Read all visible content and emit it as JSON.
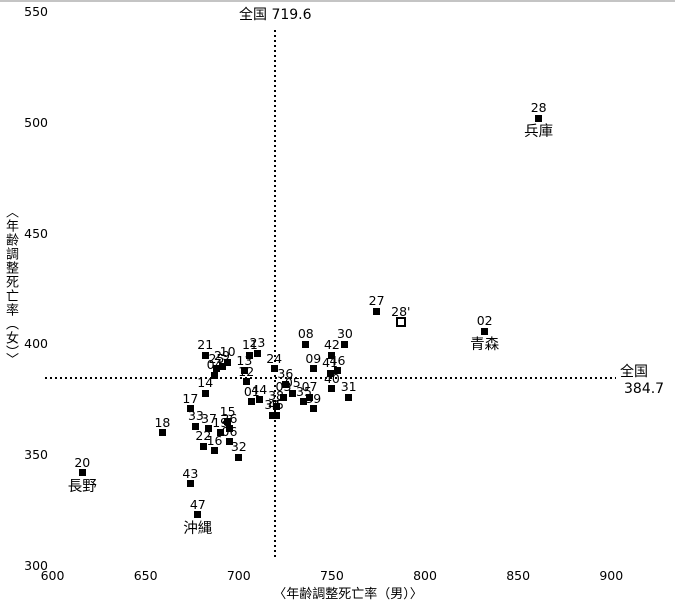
{
  "chart_data": {
    "type": "scatter",
    "title": "",
    "xlabel": "〈年齢調整死亡率（男）〉",
    "ylabel": "〈年齢調整死亡率（女）〉",
    "xlim": [
      600,
      900
    ],
    "ylim": [
      300,
      550
    ],
    "x_ticks": [
      "600",
      "650",
      "700",
      "750",
      "800",
      "850",
      "900"
    ],
    "y_ticks": [
      "550",
      "500",
      "450",
      "400",
      "350",
      "300"
    ],
    "grid": false,
    "legend": "none",
    "marker_color": "#000000",
    "reference_lines": {
      "national_male": {
        "orientation": "vertical",
        "value": 719.6,
        "label": "全国 719.6"
      },
      "national_female": {
        "orientation": "horizontal",
        "value": 384.7,
        "label_top": "全国",
        "label_bottom": "384.7"
      }
    },
    "points": [
      {
        "code": "01",
        "x": 707,
        "y": 374
      },
      {
        "code": "02",
        "x": 832,
        "y": 406,
        "name": "青森"
      },
      {
        "code": "03",
        "x": 724,
        "y": 376
      },
      {
        "code": "04",
        "x": 687,
        "y": 386
      },
      {
        "code": "05",
        "x": 729,
        "y": 378
      },
      {
        "code": "06",
        "x": 695,
        "y": 356
      },
      {
        "code": "07",
        "x": 738,
        "y": 376
      },
      {
        "code": "08",
        "x": 736,
        "y": 400
      },
      {
        "code": "09",
        "x": 740,
        "y": 389
      },
      {
        "code": "10",
        "x": 694,
        "y": 392
      },
      {
        "code": "11",
        "x": 706,
        "y": 395
      },
      {
        "code": "12",
        "x": 704,
        "y": 383
      },
      {
        "code": "13",
        "x": 703,
        "y": 388
      },
      {
        "code": "14",
        "x": 682,
        "y": 378
      },
      {
        "code": "15",
        "x": 694,
        "y": 365
      },
      {
        "code": "16",
        "x": 687,
        "y": 352
      },
      {
        "code": "17",
        "x": 674,
        "y": 371
      },
      {
        "code": "18",
        "x": 659,
        "y": 360
      },
      {
        "code": "19",
        "x": 690,
        "y": 360
      },
      {
        "code": "20",
        "x": 616,
        "y": 342,
        "name": "長野"
      },
      {
        "code": "21",
        "x": 682,
        "y": 395
      },
      {
        "code": "22",
        "x": 681,
        "y": 354
      },
      {
        "code": "23",
        "x": 710,
        "y": 396
      },
      {
        "code": "24",
        "x": 719,
        "y": 389
      },
      {
        "code": "25",
        "x": 688,
        "y": 389
      },
      {
        "code": "26",
        "x": 695,
        "y": 362
      },
      {
        "code": "27",
        "x": 774,
        "y": 415
      },
      {
        "code": "28",
        "x": 861,
        "y": 502,
        "name": "兵庫"
      },
      {
        "code": "28'",
        "x": 787,
        "y": 410,
        "marker": "open"
      },
      {
        "code": "29",
        "x": 691,
        "y": 390
      },
      {
        "code": "30",
        "x": 757,
        "y": 400
      },
      {
        "code": "31",
        "x": 759,
        "y": 376
      },
      {
        "code": "32",
        "x": 700,
        "y": 349
      },
      {
        "code": "33",
        "x": 677,
        "y": 363
      },
      {
        "code": "34",
        "x": 718,
        "y": 368
      },
      {
        "code": "35",
        "x": 735,
        "y": 374
      },
      {
        "code": "36",
        "x": 725,
        "y": 382
      },
      {
        "code": "37",
        "x": 684,
        "y": 362
      },
      {
        "code": "38",
        "x": 720,
        "y": 372
      },
      {
        "code": "39",
        "x": 740,
        "y": 371
      },
      {
        "code": "40",
        "x": 750,
        "y": 380
      },
      {
        "code": "41",
        "x": 749,
        "y": 387
      },
      {
        "code": "42",
        "x": 750,
        "y": 395
      },
      {
        "code": "43",
        "x": 674,
        "y": 337
      },
      {
        "code": "44",
        "x": 711,
        "y": 375
      },
      {
        "code": "45",
        "x": 720,
        "y": 368
      },
      {
        "code": "46",
        "x": 753,
        "y": 388
      },
      {
        "code": "47",
        "x": 678,
        "y": 323,
        "name": "沖縄"
      }
    ]
  }
}
